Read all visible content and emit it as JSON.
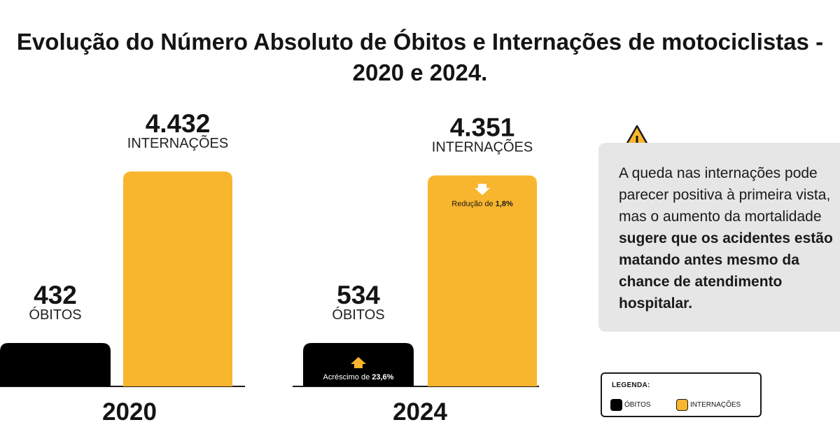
{
  "title": "Evolução do Número Absoluto de Óbitos e Internações de motociclistas - 2020 e 2024.",
  "colors": {
    "obitos": "#000000",
    "internacoes": "#f8b52e",
    "note_bg": "#e6e6e6"
  },
  "chart_data": {
    "type": "bar",
    "title": "Evolução do Número Absoluto de Óbitos e Internações de motociclistas - 2020 e 2024.",
    "categories": [
      "2020",
      "2024"
    ],
    "series": [
      {
        "name": "ÓBITOS",
        "values": [
          432,
          534
        ],
        "labels": [
          "432",
          "534"
        ],
        "sublabel": "ÓBITOS"
      },
      {
        "name": "INTERNAÇÕES",
        "values": [
          4432,
          4351
        ],
        "labels": [
          "4.432",
          "4.351"
        ],
        "sublabel": "INTERNAÇÕES"
      }
    ],
    "annotations": {
      "obitos_2024": {
        "prefix": "Acréscimo de ",
        "value": "23,6%",
        "direction": "up"
      },
      "internacoes_2024": {
        "prefix": "Redução de ",
        "value": "1,8%",
        "direction": "down"
      }
    }
  },
  "note": {
    "text": "A queda nas internações pode parecer positiva à primeira vista, mas o aumento da mortalidade ",
    "bold": "sugere que os acidentes estão matando antes mesmo da chance de atendimento hospitalar.",
    "icon": "warning-icon"
  },
  "legend": {
    "title": "LEGENDA:",
    "items": [
      {
        "label": "ÓBITOS",
        "color": "#000000"
      },
      {
        "label": "INTERNAÇÕES",
        "color": "#f8b52e"
      }
    ]
  }
}
